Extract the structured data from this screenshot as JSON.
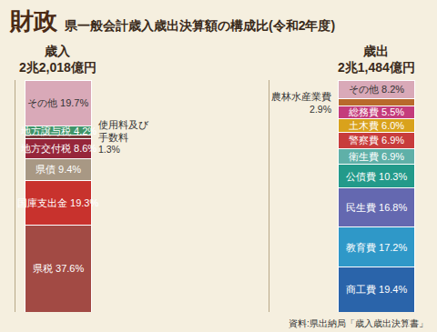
{
  "title": "財政",
  "subtitle": "県一般会計歳入歳出決算額の構成比(令和2年度)",
  "source": "資料:県出納局「歳入歳出決算書」",
  "chart_data": [
    {
      "type": "bar",
      "stacked": true,
      "data_labels": true,
      "tick_labels": false,
      "title": "歳入",
      "subtitle": "2兆2,018億円",
      "categories": [
        null
      ],
      "ylim": [
        0,
        100.1
      ],
      "series": [
        {
          "name": "県税",
          "color": "#a24a44",
          "values": [
            37.6
          ],
          "value_labels": [
            "37.6%"
          ]
        },
        {
          "name": "国庫支出金",
          "color": "#c8322d",
          "values": [
            19.3
          ],
          "value_labels": [
            "19.3%"
          ]
        },
        {
          "name": "県債",
          "color": "#a89884",
          "values": [
            9.4
          ],
          "value_labels": [
            "9.4%"
          ]
        },
        {
          "name": "地方交付税",
          "color": "#96263a",
          "values": [
            8.6
          ],
          "value_labels": [
            "8.6%"
          ]
        },
        {
          "name": "使用料及び手数料",
          "color": "#7a3a3a",
          "values": [
            1.3
          ],
          "value_labels": [
            "1.3%"
          ]
        },
        {
          "name": "地方譲与税",
          "color": "#3f9468",
          "values": [
            4.2
          ],
          "value_labels": [
            "4.2%"
          ]
        },
        {
          "name": "その他",
          "color": "#d9a9b8",
          "values": [
            19.7
          ],
          "value_labels": [
            "19.7%"
          ]
        }
      ]
    },
    {
      "type": "bar",
      "stacked": true,
      "data_labels": true,
      "tick_labels": false,
      "title": "歳出",
      "subtitle": "2兆1,484億円",
      "categories": [
        null
      ],
      "ylim": [
        0,
        100.1
      ],
      "series": [
        {
          "name": "商工費",
          "color": "#2a64aa",
          "values": [
            19.4
          ],
          "value_labels": [
            "19.4%"
          ]
        },
        {
          "name": "教育費",
          "color": "#2f98c8",
          "values": [
            17.2
          ],
          "value_labels": [
            "17.2%"
          ]
        },
        {
          "name": "民生費",
          "color": "#6468b0",
          "values": [
            16.8
          ],
          "value_labels": [
            "16.8%"
          ]
        },
        {
          "name": "公債費",
          "color": "#239a8a",
          "values": [
            10.3
          ],
          "value_labels": [
            "10.3%"
          ]
        },
        {
          "name": "衛生費",
          "color": "#5fb0a8",
          "values": [
            6.9
          ],
          "value_labels": [
            "6.9%"
          ]
        },
        {
          "name": "警察費",
          "color": "#c83c3c",
          "values": [
            6.9
          ],
          "value_labels": [
            "6.9%"
          ]
        },
        {
          "name": "土木費",
          "color": "#d9a21c",
          "values": [
            6.0
          ],
          "value_labels": [
            "6.0%"
          ]
        },
        {
          "name": "総務費",
          "color": "#c43c7c",
          "values": [
            5.5
          ],
          "value_labels": [
            "5.5%"
          ]
        },
        {
          "name": "農林水産業費",
          "color": "#b86a2c",
          "values": [
            2.9
          ],
          "value_labels": [
            "2.9%"
          ]
        },
        {
          "name": "その他",
          "color": "#d9a9b8",
          "values": [
            8.2
          ],
          "value_labels": [
            "8.2%"
          ]
        }
      ]
    }
  ]
}
